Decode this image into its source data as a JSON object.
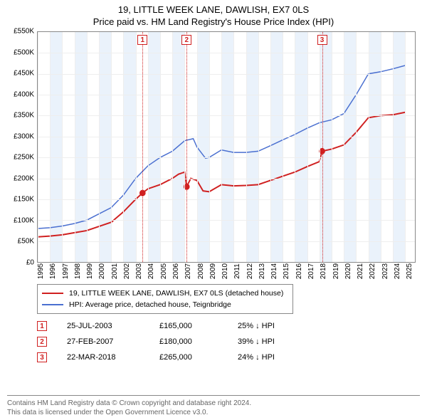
{
  "title": {
    "line1": "19, LITTLE WEEK LANE, DAWLISH, EX7 0LS",
    "line2": "Price paid vs. HM Land Registry's House Price Index (HPI)"
  },
  "chart": {
    "type": "line",
    "background_color": "#ffffff",
    "grid_color": "#eeeeee",
    "border_color": "#888888",
    "lightband_color": "#eaf2fb",
    "marker_color": "#d02020",
    "x": {
      "min": 1995,
      "max": 2025.8,
      "tick_step": 1,
      "labels": [
        "1995",
        "1996",
        "1997",
        "1998",
        "1999",
        "2000",
        "2001",
        "2002",
        "2003",
        "2004",
        "2005",
        "2006",
        "2007",
        "2008",
        "2009",
        "2010",
        "2011",
        "2012",
        "2013",
        "2014",
        "2015",
        "2016",
        "2017",
        "2018",
        "2019",
        "2020",
        "2021",
        "2022",
        "2023",
        "2024",
        "2025"
      ],
      "alt_bands": true
    },
    "y": {
      "min": 0,
      "max": 550000,
      "tick_step": 50000,
      "labels": [
        "£0",
        "£50K",
        "£100K",
        "£150K",
        "£200K",
        "£250K",
        "£300K",
        "£350K",
        "£400K",
        "£450K",
        "£500K",
        "£550K"
      ]
    },
    "series": [
      {
        "name": "19, LITTLE WEEK LANE, DAWLISH, EX7 0LS (detached house)",
        "color": "#d02020",
        "width": 2,
        "points": [
          [
            1995,
            60000
          ],
          [
            1996,
            62000
          ],
          [
            1997,
            65000
          ],
          [
            1998,
            70000
          ],
          [
            1999,
            75000
          ],
          [
            2000,
            85000
          ],
          [
            2001,
            95000
          ],
          [
            2002,
            120000
          ],
          [
            2003,
            150000
          ],
          [
            2003.56,
            165000
          ],
          [
            2004,
            175000
          ],
          [
            2005,
            185000
          ],
          [
            2006,
            200000
          ],
          [
            2006.5,
            210000
          ],
          [
            2007,
            215000
          ],
          [
            2007.16,
            180000
          ],
          [
            2007.5,
            200000
          ],
          [
            2008,
            195000
          ],
          [
            2008.5,
            170000
          ],
          [
            2009,
            168000
          ],
          [
            2010,
            185000
          ],
          [
            2011,
            182000
          ],
          [
            2012,
            183000
          ],
          [
            2013,
            185000
          ],
          [
            2014,
            195000
          ],
          [
            2015,
            205000
          ],
          [
            2016,
            215000
          ],
          [
            2017,
            228000
          ],
          [
            2018,
            240000
          ],
          [
            2018.22,
            265000
          ],
          [
            2019,
            270000
          ],
          [
            2020,
            280000
          ],
          [
            2021,
            310000
          ],
          [
            2022,
            345000
          ],
          [
            2023,
            350000
          ],
          [
            2024,
            352000
          ],
          [
            2025,
            358000
          ]
        ]
      },
      {
        "name": "HPI: Average price, detached house, Teignbridge",
        "color": "#4a6fd0",
        "width": 1.5,
        "points": [
          [
            1995,
            80000
          ],
          [
            1996,
            82000
          ],
          [
            1997,
            86000
          ],
          [
            1998,
            92000
          ],
          [
            1999,
            100000
          ],
          [
            2000,
            115000
          ],
          [
            2001,
            130000
          ],
          [
            2002,
            160000
          ],
          [
            2003,
            200000
          ],
          [
            2004,
            230000
          ],
          [
            2005,
            250000
          ],
          [
            2006,
            265000
          ],
          [
            2007,
            290000
          ],
          [
            2007.7,
            295000
          ],
          [
            2008,
            275000
          ],
          [
            2008.7,
            248000
          ],
          [
            2009,
            250000
          ],
          [
            2010,
            268000
          ],
          [
            2011,
            262000
          ],
          [
            2012,
            262000
          ],
          [
            2013,
            265000
          ],
          [
            2014,
            278000
          ],
          [
            2015,
            292000
          ],
          [
            2016,
            305000
          ],
          [
            2017,
            320000
          ],
          [
            2018,
            333000
          ],
          [
            2019,
            340000
          ],
          [
            2020,
            355000
          ],
          [
            2021,
            400000
          ],
          [
            2022,
            450000
          ],
          [
            2023,
            455000
          ],
          [
            2024,
            462000
          ],
          [
            2025,
            470000
          ]
        ]
      }
    ],
    "markers": [
      {
        "id": "1",
        "x": 2003.56,
        "y": 165000,
        "date": "25-JUL-2003",
        "price": "£165,000",
        "delta": "25% ↓ HPI"
      },
      {
        "id": "2",
        "x": 2007.16,
        "y": 180000,
        "date": "27-FEB-2007",
        "price": "£180,000",
        "delta": "39% ↓ HPI"
      },
      {
        "id": "3",
        "x": 2018.22,
        "y": 265000,
        "date": "22-MAR-2018",
        "price": "£265,000",
        "delta": "24% ↓ HPI"
      }
    ]
  },
  "legend": {
    "items": [
      {
        "color": "#d02020",
        "label": "19, LITTLE WEEK LANE, DAWLISH, EX7 0LS (detached house)"
      },
      {
        "color": "#4a6fd0",
        "label": "HPI: Average price, detached house, Teignbridge"
      }
    ]
  },
  "footer": {
    "line1": "Contains HM Land Registry data © Crown copyright and database right 2024.",
    "line2": "This data is licensed under the Open Government Licence v3.0."
  }
}
